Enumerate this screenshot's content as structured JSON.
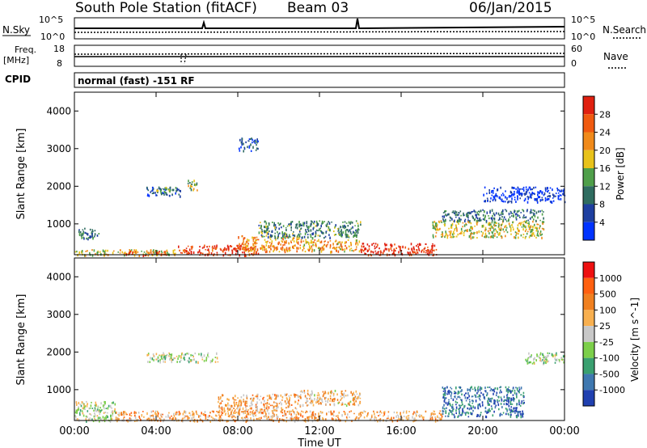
{
  "header": {
    "station": "South Pole Station (fitACF)",
    "beam": "Beam 03",
    "date": "06/Jan/2015"
  },
  "top_panels": {
    "nsky_label": "N.Sky",
    "nsky_hi": "10^5",
    "nsky_lo": "10^0",
    "nsearch_label": "N.Search",
    "nsearch_hi": "10^5",
    "nsearch_lo": "10^0",
    "freq_label_1": "Freq.",
    "freq_label_2": "[MHz]",
    "freq_hi": "18",
    "freq_lo": "8",
    "nave_label": "Nave",
    "nave_hi": "60",
    "nave_lo": "0",
    "cpid_label": "CPID",
    "cpid_text": "normal (fast) -151 RF"
  },
  "chart_data": [
    {
      "type": "heatmap",
      "title": "",
      "xlabel": "",
      "ylabel": "Slant Range [km]",
      "x_ticks": [
        "00:00",
        "04:00",
        "08:00",
        "12:00",
        "16:00",
        "20:00",
        "00:00"
      ],
      "xlim_hours": [
        0,
        24
      ],
      "y_ticks": [
        1000,
        2000,
        3000,
        4000
      ],
      "ylim": [
        180,
        4500
      ],
      "colorbar": {
        "label": "Power [dB]",
        "ticks": [
          "28",
          "24",
          "20",
          "16",
          "12",
          "8",
          "4"
        ],
        "colors": [
          "#0033ff",
          "#1e3fa0",
          "#2f6c60",
          "#4f9f4a",
          "#e8c21a",
          "#f08a1a",
          "#f05a10",
          "#e02010"
        ]
      },
      "regions": [
        {
          "t0": 0.1,
          "t1": 1.2,
          "r0": 600,
          "r1": 900,
          "level": 0.3
        },
        {
          "t0": 0.0,
          "t1": 5.0,
          "r0": 180,
          "r1": 330,
          "level": 0.55
        },
        {
          "t0": 2.2,
          "t1": 4.5,
          "r0": 180,
          "r1": 300,
          "level": 0.75
        },
        {
          "t0": 3.5,
          "t1": 5.2,
          "r0": 1750,
          "r1": 2000,
          "level": 0.2
        },
        {
          "t0": 4.0,
          "t1": 5.0,
          "r0": 1850,
          "r1": 2000,
          "level": 0.45
        },
        {
          "t0": 5.5,
          "t1": 6.0,
          "r0": 1900,
          "r1": 2200,
          "level": 0.5
        },
        {
          "t0": 8.0,
          "t1": 9.0,
          "r0": 2950,
          "r1": 3300,
          "level": 0.2
        },
        {
          "t0": 5.0,
          "t1": 9.0,
          "r0": 180,
          "r1": 450,
          "level": 0.9
        },
        {
          "t0": 8.0,
          "t1": 11.0,
          "r0": 280,
          "r1": 700,
          "level": 0.7
        },
        {
          "t0": 9.0,
          "t1": 14.0,
          "r0": 650,
          "r1": 1100,
          "level": 0.35
        },
        {
          "t0": 11.0,
          "t1": 14.0,
          "r0": 280,
          "r1": 600,
          "level": 0.65
        },
        {
          "t0": 14.0,
          "t1": 17.7,
          "r0": 180,
          "r1": 500,
          "level": 0.95
        },
        {
          "t0": 17.5,
          "t1": 23.0,
          "r0": 650,
          "r1": 1100,
          "level": 0.55
        },
        {
          "t0": 18.0,
          "t1": 23.0,
          "r0": 1100,
          "r1": 1400,
          "level": 0.3
        },
        {
          "t0": 20.0,
          "t1": 24.0,
          "r0": 1600,
          "r1": 2000,
          "level": 0.05
        }
      ]
    },
    {
      "type": "heatmap",
      "title": "",
      "xlabel": "Time UT",
      "ylabel": "Slant Range [km]",
      "x_ticks": [
        "00:00",
        "04:00",
        "08:00",
        "12:00",
        "16:00",
        "20:00",
        "00:00"
      ],
      "xlim_hours": [
        0,
        24
      ],
      "y_ticks": [
        1000,
        2000,
        3000,
        4000
      ],
      "ylim": [
        180,
        4500
      ],
      "colorbar": {
        "label": "Velocity [m s^-1]",
        "ticks": [
          "1000",
          "500",
          "100",
          "25",
          "-25",
          "-100",
          "-500",
          "-1000"
        ],
        "colors": [
          "#2040b0",
          "#3f78b0",
          "#3aa070",
          "#7ccf4a",
          "#c8c8c8",
          "#f8b050",
          "#f08020",
          "#ff6010",
          "#ee1010"
        ]
      },
      "regions": [
        {
          "t0": 0.0,
          "t1": 2.0,
          "r0": 180,
          "r1": 700,
          "level": 0.45
        },
        {
          "t0": 2.0,
          "t1": 18.0,
          "r0": 180,
          "r1": 450,
          "level": 0.65
        },
        {
          "t0": 3.5,
          "t1": 7.0,
          "r0": 1750,
          "r1": 2000,
          "level": 0.45
        },
        {
          "t0": 7.0,
          "t1": 11.0,
          "r0": 400,
          "r1": 900,
          "level": 0.65
        },
        {
          "t0": 11.0,
          "t1": 14.0,
          "r0": 600,
          "r1": 1000,
          "level": 0.6
        },
        {
          "t0": 18.0,
          "t1": 22.0,
          "r0": 300,
          "r1": 1100,
          "level": 0.15
        },
        {
          "t0": 22.0,
          "t1": 24.0,
          "r0": 1700,
          "r1": 2000,
          "level": 0.45
        }
      ]
    }
  ]
}
